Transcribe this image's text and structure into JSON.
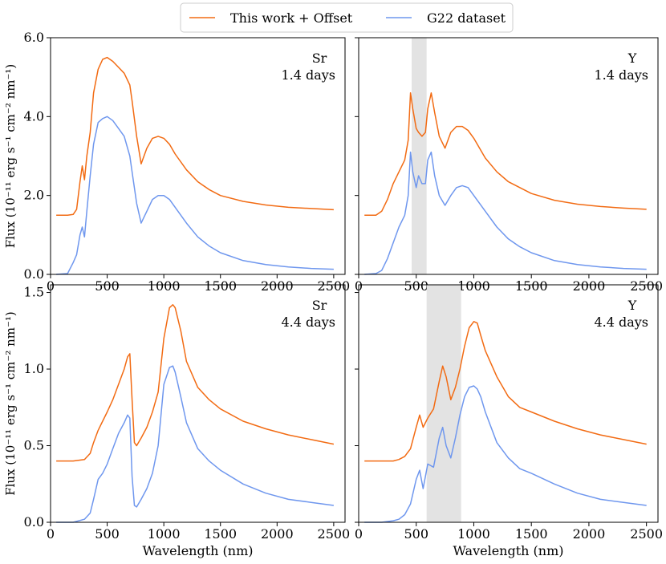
{
  "colors": {
    "this_work": "#f26b13",
    "g22": "#6f97ee",
    "band": "#e3e3e3",
    "axis": "#000000"
  },
  "legend": {
    "items": [
      {
        "label": "This work + Offset",
        "series": "this_work"
      },
      {
        "label": "G22 dataset",
        "series": "g22"
      }
    ]
  },
  "chart_data": [
    {
      "id": "sr-1.4",
      "type": "line",
      "element": "Sr",
      "epoch": "1.4 days",
      "xlabel": "Wavelength (nm)",
      "ylabel": "Flux (10⁻¹¹ erg s⁻¹ cm⁻² nm⁻¹)",
      "xlim": [
        0,
        2600
      ],
      "ylim": [
        0,
        6.0
      ],
      "xticks": [
        0,
        500,
        1000,
        1500,
        2000,
        2500
      ],
      "xtick_labels": [
        "0",
        "500",
        "1000",
        "1500",
        "2000",
        "2500"
      ],
      "yticks": [
        0,
        2,
        4,
        6
      ],
      "ytick_labels": [
        "0.0",
        "2.0",
        "4.0",
        "6.0"
      ],
      "band": null,
      "series": [
        {
          "name": "This work + Offset",
          "key": "this_work",
          "x": [
            50,
            150,
            200,
            230,
            260,
            280,
            300,
            320,
            350,
            380,
            420,
            460,
            500,
            550,
            600,
            650,
            700,
            720,
            760,
            800,
            850,
            900,
            950,
            1000,
            1050,
            1100,
            1200,
            1300,
            1400,
            1500,
            1700,
            1900,
            2100,
            2300,
            2500
          ],
          "y": [
            1.5,
            1.5,
            1.52,
            1.65,
            2.35,
            2.75,
            2.4,
            3.0,
            3.6,
            4.6,
            5.2,
            5.45,
            5.5,
            5.4,
            5.25,
            5.1,
            4.8,
            4.4,
            3.5,
            2.8,
            3.2,
            3.45,
            3.5,
            3.45,
            3.3,
            3.05,
            2.65,
            2.35,
            2.15,
            2.0,
            1.85,
            1.76,
            1.7,
            1.67,
            1.64
          ]
        },
        {
          "name": "G22 dataset",
          "key": "g22",
          "x": [
            50,
            150,
            200,
            230,
            260,
            280,
            300,
            320,
            350,
            380,
            420,
            460,
            500,
            550,
            600,
            650,
            700,
            720,
            760,
            800,
            850,
            900,
            950,
            1000,
            1050,
            1100,
            1200,
            1300,
            1400,
            1500,
            1700,
            1900,
            2100,
            2300,
            2500
          ],
          "y": [
            0.0,
            0.02,
            0.3,
            0.5,
            1.0,
            1.2,
            0.95,
            1.6,
            2.5,
            3.3,
            3.85,
            3.95,
            4.0,
            3.9,
            3.7,
            3.5,
            3.0,
            2.6,
            1.8,
            1.3,
            1.6,
            1.9,
            2.0,
            2.0,
            1.9,
            1.7,
            1.3,
            0.95,
            0.72,
            0.55,
            0.35,
            0.25,
            0.19,
            0.15,
            0.13
          ]
        }
      ]
    },
    {
      "id": "y-1.4",
      "type": "line",
      "element": "Y",
      "epoch": "1.4 days",
      "xlabel": "Wavelength (nm)",
      "ylabel": "",
      "xlim": [
        0,
        2600
      ],
      "ylim": [
        0,
        6.0
      ],
      "xticks": [
        0,
        500,
        1000,
        1500,
        2000,
        2500
      ],
      "xtick_labels": [
        "0",
        "500",
        "1000",
        "1500",
        "2000",
        "2500"
      ],
      "yticks": [
        0,
        2,
        4,
        6
      ],
      "ytick_labels": [
        "",
        "",
        "",
        ""
      ],
      "band": [
        460,
        590
      ],
      "series": [
        {
          "name": "This work + Offset",
          "key": "this_work",
          "x": [
            50,
            150,
            200,
            250,
            300,
            350,
            400,
            430,
            450,
            470,
            500,
            520,
            550,
            580,
            600,
            630,
            660,
            700,
            750,
            800,
            850,
            900,
            950,
            1000,
            1100,
            1200,
            1300,
            1400,
            1500,
            1700,
            1900,
            2100,
            2300,
            2500
          ],
          "y": [
            1.5,
            1.5,
            1.6,
            1.9,
            2.3,
            2.6,
            2.9,
            3.4,
            4.6,
            4.2,
            3.7,
            3.6,
            3.5,
            3.6,
            4.2,
            4.6,
            4.1,
            3.5,
            3.2,
            3.6,
            3.75,
            3.75,
            3.65,
            3.45,
            2.95,
            2.6,
            2.35,
            2.2,
            2.05,
            1.88,
            1.78,
            1.72,
            1.68,
            1.65
          ]
        },
        {
          "name": "G22 dataset",
          "key": "g22",
          "x": [
            50,
            150,
            200,
            250,
            300,
            350,
            400,
            430,
            450,
            470,
            500,
            520,
            550,
            580,
            600,
            630,
            660,
            700,
            750,
            800,
            850,
            900,
            950,
            1000,
            1100,
            1200,
            1300,
            1400,
            1500,
            1700,
            1900,
            2100,
            2300,
            2500
          ],
          "y": [
            0.0,
            0.02,
            0.1,
            0.4,
            0.8,
            1.2,
            1.5,
            2.0,
            3.1,
            2.6,
            2.2,
            2.5,
            2.3,
            2.3,
            2.9,
            3.1,
            2.5,
            2.0,
            1.75,
            2.0,
            2.2,
            2.25,
            2.2,
            2.0,
            1.6,
            1.2,
            0.9,
            0.7,
            0.55,
            0.35,
            0.25,
            0.19,
            0.15,
            0.13
          ]
        }
      ]
    },
    {
      "id": "sr-4.4",
      "type": "line",
      "element": "Sr",
      "epoch": "4.4 days",
      "xlabel": "Wavelength (nm)",
      "ylabel": "Flux (10⁻¹¹ erg s⁻¹ cm⁻² nm⁻¹)",
      "xlim": [
        0,
        2600
      ],
      "ylim": [
        0,
        1.55
      ],
      "xticks": [
        0,
        500,
        1000,
        1500,
        2000,
        2500
      ],
      "xtick_labels": [
        "0",
        "500",
        "1000",
        "1500",
        "2000",
        "2500"
      ],
      "yticks": [
        0,
        0.5,
        1.0,
        1.5
      ],
      "ytick_labels": [
        "0.0",
        "0.5",
        "1.0",
        "1.5"
      ],
      "band": null,
      "series": [
        {
          "name": "This work + Offset",
          "key": "this_work",
          "x": [
            50,
            200,
            300,
            350,
            380,
            420,
            460,
            500,
            550,
            600,
            650,
            680,
            700,
            720,
            740,
            760,
            800,
            850,
            900,
            950,
            1000,
            1050,
            1080,
            1100,
            1150,
            1200,
            1300,
            1400,
            1500,
            1700,
            1900,
            2100,
            2300,
            2500
          ],
          "y": [
            0.4,
            0.4,
            0.41,
            0.45,
            0.52,
            0.6,
            0.66,
            0.72,
            0.8,
            0.9,
            1.0,
            1.08,
            1.1,
            0.8,
            0.52,
            0.5,
            0.55,
            0.62,
            0.72,
            0.85,
            1.2,
            1.4,
            1.42,
            1.4,
            1.25,
            1.05,
            0.88,
            0.8,
            0.74,
            0.66,
            0.61,
            0.57,
            0.54,
            0.51
          ]
        },
        {
          "name": "G22 dataset",
          "key": "g22",
          "x": [
            50,
            200,
            300,
            350,
            380,
            420,
            460,
            500,
            550,
            600,
            650,
            680,
            700,
            720,
            740,
            760,
            800,
            850,
            900,
            950,
            1000,
            1050,
            1080,
            1100,
            1150,
            1200,
            1300,
            1400,
            1500,
            1700,
            1900,
            2100,
            2300,
            2500
          ],
          "y": [
            0.0,
            0.0,
            0.02,
            0.06,
            0.15,
            0.28,
            0.32,
            0.38,
            0.48,
            0.58,
            0.65,
            0.7,
            0.68,
            0.3,
            0.11,
            0.1,
            0.15,
            0.22,
            0.32,
            0.5,
            0.9,
            1.01,
            1.02,
            0.98,
            0.82,
            0.65,
            0.48,
            0.4,
            0.34,
            0.25,
            0.19,
            0.15,
            0.13,
            0.11
          ]
        }
      ]
    },
    {
      "id": "y-4.4",
      "type": "line",
      "element": "Y",
      "epoch": "4.4 days",
      "xlabel": "Wavelength (nm)",
      "ylabel": "",
      "xlim": [
        0,
        2600
      ],
      "ylim": [
        0,
        1.55
      ],
      "xticks": [
        0,
        500,
        1000,
        1500,
        2000,
        2500
      ],
      "xtick_labels": [
        "0",
        "500",
        "1000",
        "1500",
        "2000",
        "2500"
      ],
      "yticks": [
        0,
        0.5,
        1.0,
        1.5
      ],
      "ytick_labels": [
        "",
        "",
        "",
        ""
      ],
      "band": [
        590,
        890
      ],
      "series": [
        {
          "name": "This work + Offset",
          "key": "this_work",
          "x": [
            50,
            200,
            300,
            350,
            400,
            450,
            500,
            530,
            560,
            600,
            650,
            700,
            730,
            760,
            800,
            840,
            880,
            920,
            960,
            1000,
            1030,
            1060,
            1100,
            1200,
            1300,
            1400,
            1500,
            1700,
            1900,
            2100,
            2300,
            2500
          ],
          "y": [
            0.4,
            0.4,
            0.4,
            0.41,
            0.43,
            0.48,
            0.62,
            0.7,
            0.62,
            0.68,
            0.74,
            0.92,
            1.02,
            0.95,
            0.8,
            0.88,
            1.0,
            1.15,
            1.27,
            1.31,
            1.3,
            1.22,
            1.12,
            0.95,
            0.82,
            0.75,
            0.72,
            0.66,
            0.61,
            0.57,
            0.54,
            0.51
          ]
        },
        {
          "name": "G22 dataset",
          "key": "g22",
          "x": [
            50,
            200,
            300,
            350,
            400,
            450,
            500,
            530,
            560,
            600,
            650,
            700,
            730,
            760,
            800,
            840,
            880,
            920,
            960,
            1000,
            1030,
            1060,
            1100,
            1200,
            1300,
            1400,
            1500,
            1700,
            1900,
            2100,
            2300,
            2500
          ],
          "y": [
            0.0,
            0.0,
            0.01,
            0.02,
            0.05,
            0.12,
            0.28,
            0.34,
            0.22,
            0.38,
            0.36,
            0.55,
            0.62,
            0.5,
            0.42,
            0.55,
            0.7,
            0.82,
            0.88,
            0.89,
            0.87,
            0.82,
            0.72,
            0.52,
            0.42,
            0.35,
            0.32,
            0.25,
            0.19,
            0.15,
            0.13,
            0.11
          ]
        }
      ]
    }
  ]
}
